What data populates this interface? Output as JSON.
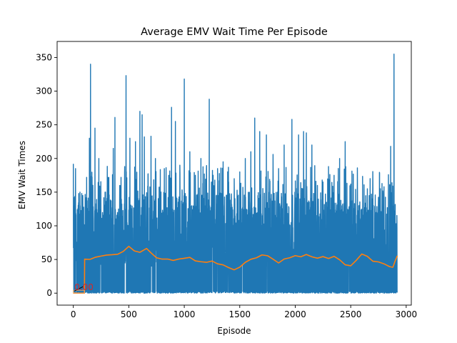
{
  "chart_data": {
    "type": "line",
    "title": "Average EMV Wait Time Per Episode",
    "xlabel": "Episode",
    "ylabel": "EMV Wait Times",
    "xlim": [
      -146,
      3046
    ],
    "ylim": [
      -17.8,
      373.8
    ],
    "xticks": [
      0,
      500,
      1000,
      1500,
      2000,
      2500,
      3000
    ],
    "yticks": [
      0,
      50,
      100,
      150,
      200,
      250,
      300,
      350
    ],
    "grid": false,
    "legend": "none",
    "colors": {
      "raw": "#1f77b4",
      "avg": "#ff7f0e",
      "annotation": "#d62728",
      "box": "#e8a060"
    },
    "series": [
      {
        "name": "",
        "style": "raw-noisy",
        "n_points": 2920,
        "range": [
          0,
          355
        ],
        "spikes": [
          [
            0,
            192
          ],
          [
            20,
            185
          ],
          [
            60,
            150
          ],
          [
            85,
            145
          ],
          [
            120,
            172
          ],
          [
            145,
            230
          ],
          [
            155,
            340
          ],
          [
            195,
            245
          ],
          [
            230,
            200
          ],
          [
            290,
            150
          ],
          [
            360,
            215
          ],
          [
            375,
            261
          ],
          [
            430,
            172
          ],
          [
            475,
            323
          ],
          [
            510,
            230
          ],
          [
            560,
            225
          ],
          [
            600,
            270
          ],
          [
            620,
            265
          ],
          [
            640,
            232
          ],
          [
            700,
            233
          ],
          [
            740,
            200
          ],
          [
            790,
            150
          ],
          [
            820,
            185
          ],
          [
            860,
            175
          ],
          [
            885,
            276
          ],
          [
            920,
            255
          ],
          [
            960,
            190
          ],
          [
            1000,
            318
          ],
          [
            1050,
            210
          ],
          [
            1100,
            175
          ],
          [
            1150,
            200
          ],
          [
            1200,
            185
          ],
          [
            1225,
            288
          ],
          [
            1260,
            175
          ],
          [
            1300,
            185
          ],
          [
            1350,
            195
          ],
          [
            1400,
            165
          ],
          [
            1450,
            170
          ],
          [
            1500,
            180
          ],
          [
            1550,
            200
          ],
          [
            1600,
            210
          ],
          [
            1635,
            260
          ],
          [
            1680,
            240
          ],
          [
            1740,
            235
          ],
          [
            1800,
            206
          ],
          [
            1850,
            185
          ],
          [
            1900,
            220
          ],
          [
            1970,
            258
          ],
          [
            2030,
            235
          ],
          [
            2075,
            240
          ],
          [
            2100,
            238
          ],
          [
            2150,
            220
          ],
          [
            2200,
            160
          ],
          [
            2250,
            165
          ],
          [
            2300,
            188
          ],
          [
            2350,
            175
          ],
          [
            2400,
            200
          ],
          [
            2450,
            225
          ],
          [
            2500,
            162
          ],
          [
            2560,
            186
          ],
          [
            2620,
            161
          ],
          [
            2650,
            155
          ],
          [
            2700,
            156
          ],
          [
            2760,
            178
          ],
          [
            2800,
            158
          ],
          [
            2860,
            218
          ],
          [
            2890,
            355
          ],
          [
            2905,
            80
          ]
        ]
      },
      {
        "name": "",
        "style": "moving-average",
        "points": [
          [
            0,
            0
          ],
          [
            100,
            0
          ],
          [
            102,
            50
          ],
          [
            150,
            50
          ],
          [
            200,
            53
          ],
          [
            250,
            55
          ],
          [
            300,
            56
          ],
          [
            350,
            57
          ],
          [
            400,
            58
          ],
          [
            450,
            62
          ],
          [
            500,
            70
          ],
          [
            550,
            62
          ],
          [
            600,
            60
          ],
          [
            660,
            67
          ],
          [
            700,
            60
          ],
          [
            750,
            53
          ],
          [
            800,
            50
          ],
          [
            850,
            50
          ],
          [
            900,
            48
          ],
          [
            950,
            50
          ],
          [
            1000,
            52
          ],
          [
            1050,
            53
          ],
          [
            1100,
            48
          ],
          [
            1150,
            47
          ],
          [
            1200,
            46
          ],
          [
            1250,
            47
          ],
          [
            1300,
            44
          ],
          [
            1350,
            42
          ],
          [
            1400,
            38
          ],
          [
            1450,
            34
          ],
          [
            1500,
            38
          ],
          [
            1550,
            46
          ],
          [
            1600,
            50
          ],
          [
            1650,
            52
          ],
          [
            1700,
            57
          ],
          [
            1750,
            55
          ],
          [
            1800,
            50
          ],
          [
            1850,
            45
          ],
          [
            1900,
            50
          ],
          [
            1950,
            52
          ],
          [
            2000,
            56
          ],
          [
            2050,
            54
          ],
          [
            2100,
            57
          ],
          [
            2150,
            54
          ],
          [
            2200,
            52
          ],
          [
            2250,
            54
          ],
          [
            2300,
            52
          ],
          [
            2350,
            54
          ],
          [
            2400,
            50
          ],
          [
            2450,
            42
          ],
          [
            2500,
            40
          ],
          [
            2550,
            48
          ],
          [
            2600,
            58
          ],
          [
            2650,
            55
          ],
          [
            2700,
            48
          ],
          [
            2750,
            47
          ],
          [
            2800,
            44
          ],
          [
            2850,
            40
          ],
          [
            2880,
            38
          ],
          [
            2900,
            48
          ],
          [
            2920,
            56
          ]
        ]
      }
    ],
    "annotations": [
      {
        "text": "0.00",
        "x": 100,
        "y": 0
      }
    ]
  }
}
